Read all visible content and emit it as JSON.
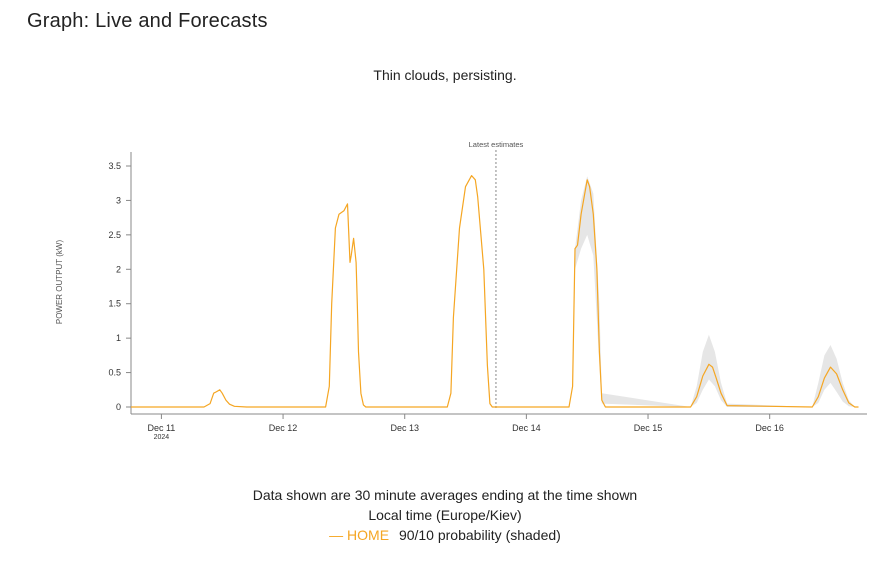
{
  "page": {
    "title": "Graph: Live and Forecasts",
    "subtitle": "Thin clouds, persisting."
  },
  "footer": {
    "line1": "Data shown are 30 minute averages ending at the time shown",
    "line2": "Local time (Europe/Kiev)",
    "legend_dash": "—",
    "legend_series": "HOME",
    "legend_note": "90/10 probability (shaded)"
  },
  "colors": {
    "series": "#f5a623",
    "band": "#e6e6e6",
    "axis": "#888888",
    "marker": "#888888"
  },
  "chart_data": {
    "type": "line",
    "title": "",
    "xlabel": "",
    "ylabel": "POWER OUTPUT (kW)",
    "ylim": [
      0,
      3.5
    ],
    "yticks": [
      0,
      0.5,
      1,
      1.5,
      2,
      2.5,
      3,
      3.5
    ],
    "ytick_labels": [
      "0",
      "0.5",
      "1",
      "1.5",
      "2",
      "2.5",
      "3",
      "3.5"
    ],
    "xlim": [
      -0.25,
      5.8
    ],
    "xticks": [
      0,
      1,
      2,
      3,
      4,
      5
    ],
    "xtick_labels": [
      "Dec 11",
      "Dec 12",
      "Dec 13",
      "Dec 14",
      "Dec 15",
      "Dec 16"
    ],
    "xtick_sublabel": "2024",
    "marker": {
      "x": 2.75,
      "label": "Latest estimates"
    },
    "series": [
      {
        "name": "HOME",
        "x": [
          -0.25,
          0.35,
          0.4,
          0.43,
          0.45,
          0.48,
          0.5,
          0.53,
          0.56,
          0.6,
          0.7,
          1.35,
          1.38,
          1.4,
          1.43,
          1.46,
          1.5,
          1.53,
          1.55,
          1.56,
          1.58,
          1.6,
          1.61,
          1.62,
          1.64,
          1.66,
          1.68,
          1.7,
          2.35,
          2.38,
          2.4,
          2.45,
          2.5,
          2.55,
          2.58,
          2.6,
          2.65,
          2.68,
          2.7,
          2.72,
          3.35,
          3.38,
          3.4,
          3.42,
          3.45,
          3.5,
          3.52,
          3.55,
          3.58,
          3.6,
          3.62,
          3.65,
          4.35,
          4.4,
          4.45,
          4.5,
          4.53,
          4.56,
          4.6,
          4.65,
          5.35,
          5.4,
          5.45,
          5.5,
          5.55,
          5.6,
          5.65,
          5.7,
          5.73
        ],
        "y": [
          0,
          0,
          0.05,
          0.2,
          0.22,
          0.25,
          0.2,
          0.1,
          0.04,
          0.01,
          0,
          0,
          0.3,
          1.5,
          2.6,
          2.8,
          2.85,
          2.95,
          2.1,
          2.2,
          2.45,
          2.1,
          1.5,
          0.8,
          0.2,
          0.03,
          0,
          0,
          0,
          0.2,
          1.3,
          2.6,
          3.2,
          3.36,
          3.3,
          3.05,
          2.0,
          0.6,
          0.05,
          0,
          0,
          0.3,
          2.3,
          2.35,
          2.8,
          3.3,
          3.2,
          2.8,
          2.0,
          0.8,
          0.1,
          0,
          0,
          0.15,
          0.45,
          0.62,
          0.58,
          0.42,
          0.2,
          0.02,
          0,
          0.15,
          0.42,
          0.58,
          0.48,
          0.25,
          0.06,
          0,
          0
        ]
      }
    ],
    "band": {
      "name": "90/10 probability (shaded)",
      "x": [
        3.4,
        3.45,
        3.5,
        3.55,
        3.6,
        3.62,
        4.35,
        4.4,
        4.45,
        4.5,
        4.55,
        4.6,
        4.65,
        5.35,
        5.4,
        5.45,
        5.5,
        5.55,
        5.6,
        5.65,
        5.7
      ],
      "upper": [
        2.3,
        3.0,
        3.35,
        3.1,
        1.5,
        0.2,
        0,
        0.3,
        0.8,
        1.05,
        0.8,
        0.35,
        0.05,
        0,
        0.35,
        0.75,
        0.9,
        0.7,
        0.35,
        0.1,
        0
      ],
      "lower": [
        2.0,
        2.3,
        2.5,
        2.2,
        0.6,
        0.05,
        0,
        0.06,
        0.25,
        0.4,
        0.3,
        0.1,
        0,
        0,
        0.06,
        0.25,
        0.35,
        0.22,
        0.08,
        0.01,
        0
      ]
    }
  }
}
